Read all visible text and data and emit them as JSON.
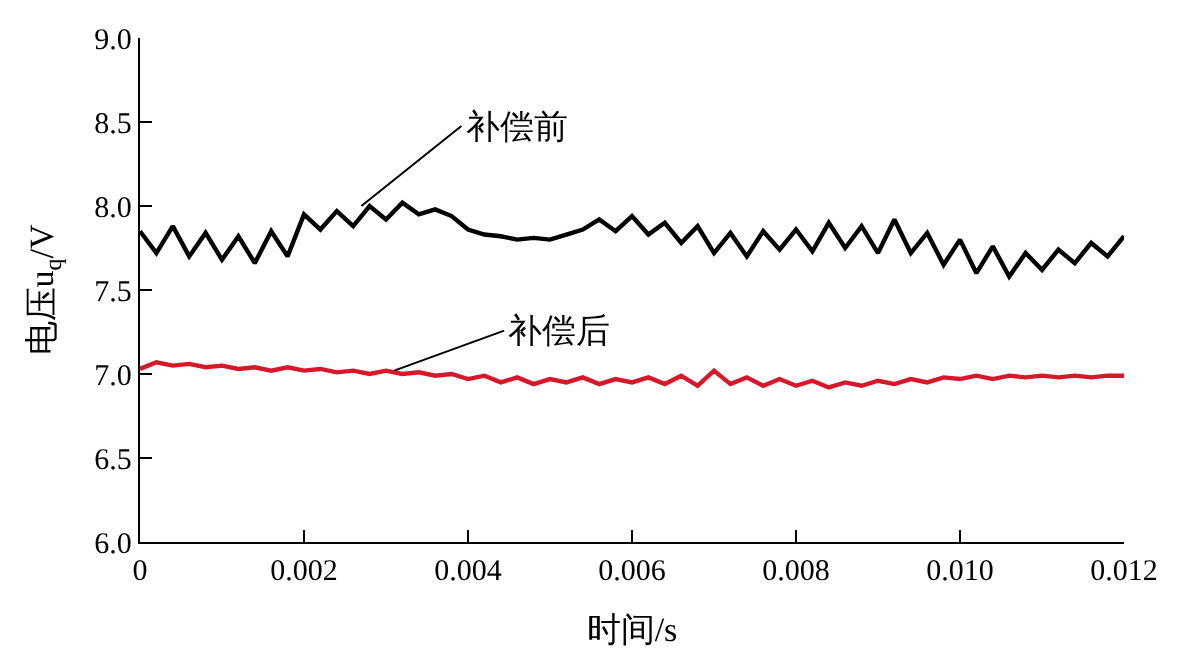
{
  "chart_data": {
    "type": "line",
    "xlabel": "时间/s",
    "ylabel": "电压u$_{q}$/V",
    "x": [
      0,
      0.0002,
      0.0004,
      0.0006,
      0.0008,
      0.001,
      0.0012,
      0.0014,
      0.0016,
      0.0018,
      0.002,
      0.0022,
      0.0024,
      0.0026,
      0.0028,
      0.003,
      0.0032,
      0.0034,
      0.0036,
      0.0038,
      0.004,
      0.0042,
      0.0044,
      0.0046,
      0.0048,
      0.005,
      0.0052,
      0.0054,
      0.0056,
      0.0058,
      0.006,
      0.0062,
      0.0064,
      0.0066,
      0.0068,
      0.007,
      0.0072,
      0.0074,
      0.0076,
      0.0078,
      0.008,
      0.0082,
      0.0084,
      0.0086,
      0.0088,
      0.009,
      0.0092,
      0.0094,
      0.0096,
      0.0098,
      0.01,
      0.0102,
      0.0104,
      0.0106,
      0.0108,
      0.011,
      0.0112,
      0.0114,
      0.0116,
      0.0118,
      0.012
    ],
    "series": [
      {
        "color": "#000000",
        "values": [
          7.85,
          7.72,
          7.88,
          7.7,
          7.84,
          7.68,
          7.82,
          7.66,
          7.85,
          7.7,
          7.95,
          7.86,
          7.97,
          7.88,
          8.0,
          7.92,
          8.02,
          7.95,
          7.98,
          7.94,
          7.86,
          7.83,
          7.82,
          7.8,
          7.81,
          7.8,
          7.83,
          7.86,
          7.92,
          7.85,
          7.94,
          7.83,
          7.9,
          7.78,
          7.88,
          7.72,
          7.84,
          7.7,
          7.85,
          7.74,
          7.86,
          7.73,
          7.9,
          7.75,
          7.88,
          7.72,
          7.92,
          7.72,
          7.84,
          7.65,
          7.8,
          7.6,
          7.76,
          7.58,
          7.72,
          7.62,
          7.74,
          7.66,
          7.78,
          7.7,
          7.82
        ]
      },
      {
        "color": "#d7182a",
        "values": [
          7.03,
          7.07,
          7.05,
          7.06,
          7.04,
          7.05,
          7.03,
          7.04,
          7.02,
          7.04,
          7.02,
          7.03,
          7.01,
          7.02,
          7.0,
          7.02,
          7.0,
          7.01,
          6.99,
          7.0,
          6.97,
          6.99,
          6.95,
          6.98,
          6.94,
          6.97,
          6.95,
          6.98,
          6.94,
          6.97,
          6.95,
          6.98,
          6.94,
          6.99,
          6.93,
          7.02,
          6.94,
          6.98,
          6.93,
          6.97,
          6.93,
          6.96,
          6.92,
          6.95,
          6.93,
          6.96,
          6.94,
          6.97,
          6.95,
          6.98,
          6.97,
          6.99,
          6.97,
          6.99,
          6.98,
          6.99,
          6.98,
          6.99,
          6.98,
          6.99,
          6.99
        ]
      }
    ],
    "annotations": [
      {
        "text": "补偿前",
        "x": 0.0027,
        "y": 8.0
      },
      {
        "text": "补偿后",
        "x": 0.0031,
        "y": 7.02
      }
    ],
    "xlim": [
      0,
      0.012
    ],
    "xticks": [
      0,
      0.002,
      0.004,
      0.006,
      0.008,
      {
        "value": 0.01,
        "label": "0.010"
      },
      0.012
    ],
    "ylim": [
      6.0,
      9.0
    ],
    "yticks": [
      {
        "value": 6.0,
        "label": "6.0"
      },
      6.5,
      {
        "value": 7.0,
        "label": "7.0"
      },
      7.5,
      {
        "value": 8.0,
        "label": "8.0"
      },
      8.5,
      {
        "value": 9.0,
        "label": "9.0"
      }
    ]
  }
}
